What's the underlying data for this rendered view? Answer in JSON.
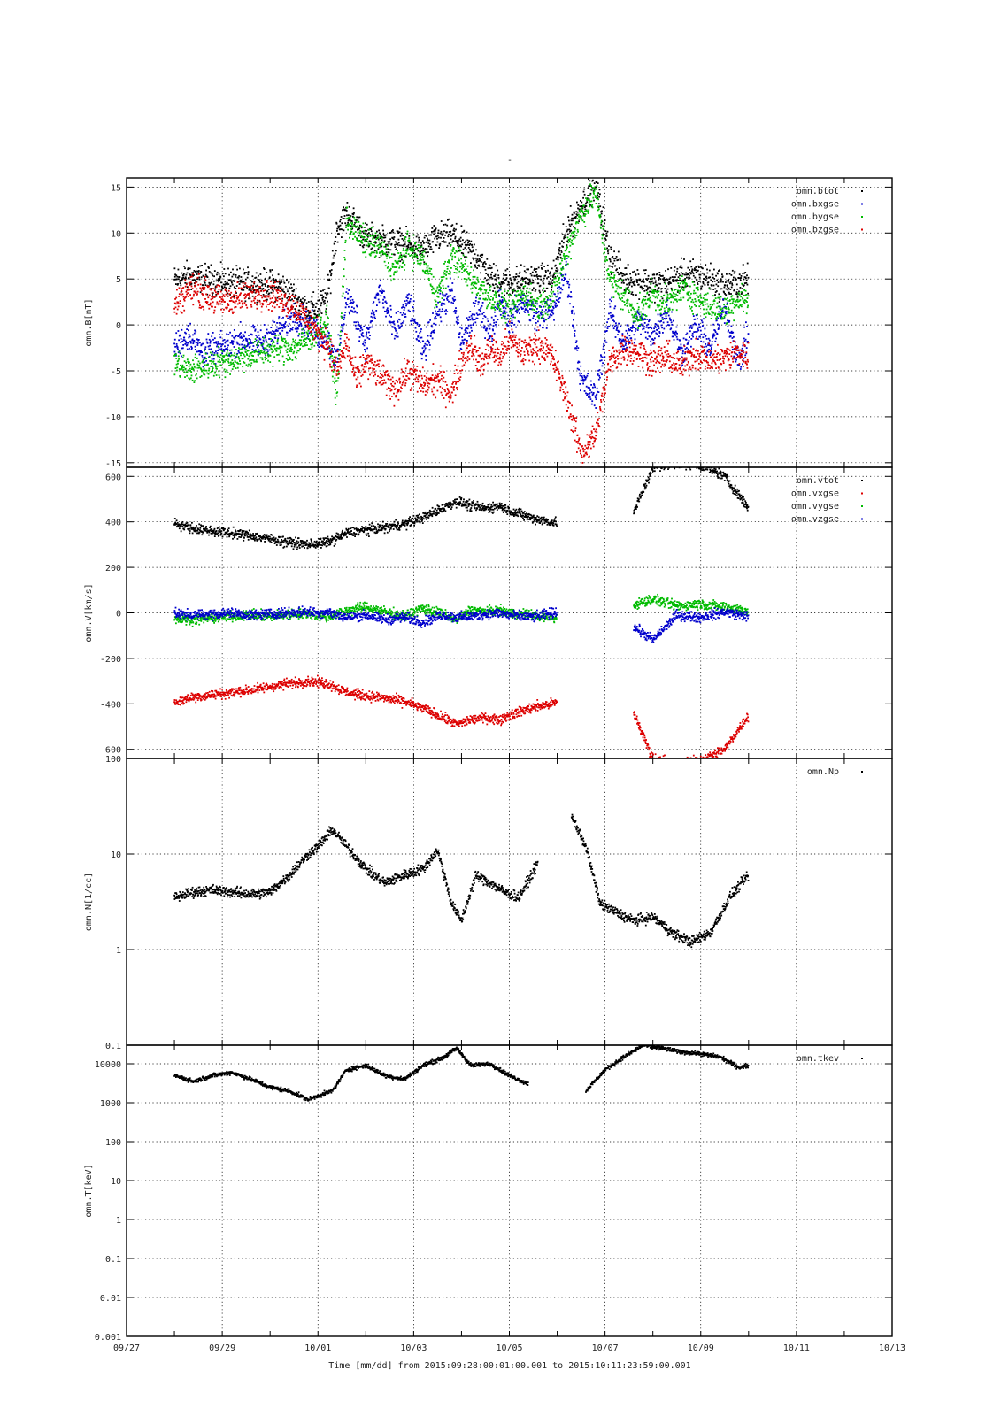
{
  "figure": {
    "title": "-",
    "time_caption": "Time [mm/dd]  from 2015:09:28:00:01:00.001  to  2015:10:11:23:59:00.001"
  },
  "chart_data": [
    {
      "type": "scatter",
      "name": "omn.B",
      "ylabel": "omn.B[nT]",
      "ylim": [
        -15.5,
        16
      ],
      "yscale": "linear",
      "yticks": [
        -15,
        -10,
        -5,
        0,
        5,
        10,
        15
      ],
      "xlim": [
        "09/27",
        "10/13"
      ],
      "xticks": [
        "09/27",
        "09/29",
        "10/01",
        "10/03",
        "10/05",
        "10/07",
        "10/09",
        "10/11",
        "10/13"
      ],
      "show_x_ticklabels": false,
      "grid": true,
      "legend_position": "top-right",
      "series": [
        {
          "name": "omn.btot",
          "color": "#000000",
          "t": [
            1.0,
            1.3,
            1.6,
            2.0,
            2.4,
            2.8,
            3.2,
            3.5,
            3.8,
            4.0,
            4.2,
            4.4,
            4.6,
            4.8,
            5.0,
            5.3,
            5.6,
            5.9,
            6.2,
            6.5,
            6.8,
            7.0,
            7.2,
            7.4,
            7.6,
            7.8,
            8.0,
            8.3,
            8.6,
            8.9,
            9.2,
            9.5,
            9.8,
            10.1,
            10.4,
            10.7,
            11.0,
            11.3,
            11.6,
            11.9,
            12.2,
            12.5,
            12.8,
            13.0
          ],
          "y": [
            4.8,
            5.3,
            5.0,
            4.7,
            4.5,
            4.4,
            4.3,
            3.0,
            1.6,
            1.8,
            3.0,
            10.5,
            12.0,
            11.0,
            9.5,
            9.2,
            9.0,
            8.6,
            8.2,
            9.5,
            9.8,
            8.8,
            8.0,
            7.0,
            5.2,
            4.8,
            4.6,
            4.9,
            5.0,
            4.9,
            10.3,
            13.0,
            15.5,
            7.5,
            5.0,
            4.8,
            4.4,
            4.6,
            5.3,
            5.5,
            5.0,
            4.2,
            4.6,
            5.0
          ]
        },
        {
          "name": "omn.bxgse",
          "color": "#0000cc",
          "t": [
            1.0,
            1.3,
            1.6,
            2.0,
            2.4,
            2.8,
            3.2,
            3.5,
            3.8,
            4.0,
            4.2,
            4.4,
            4.6,
            4.8,
            5.0,
            5.3,
            5.6,
            5.9,
            6.2,
            6.5,
            6.8,
            7.0,
            7.2,
            7.4,
            7.6,
            7.8,
            8.0,
            8.3,
            8.6,
            8.9,
            9.2,
            9.5,
            9.8,
            10.1,
            10.4,
            10.7,
            11.0,
            11.3,
            11.6,
            11.9,
            12.2,
            12.5,
            12.8,
            13.0
          ],
          "y": [
            -2.5,
            -1.0,
            -3.0,
            -2.5,
            -1.5,
            -2.0,
            -0.5,
            1.0,
            0.0,
            -1.0,
            -1.5,
            -4.0,
            3.0,
            1.0,
            -2.0,
            4.0,
            -1.0,
            2.5,
            -3.0,
            1.5,
            3.5,
            -2.0,
            0.5,
            2.0,
            -1.5,
            3.0,
            0.5,
            2.5,
            1.0,
            1.5,
            6.0,
            -6.0,
            -8.0,
            1.5,
            -2.0,
            0.5,
            -1.0,
            1.5,
            -3.0,
            0.0,
            -2.5,
            2.0,
            -4.0,
            -1.0
          ]
        },
        {
          "name": "omn.bygse",
          "color": "#00bb00",
          "t": [
            1.0,
            1.3,
            1.6,
            2.0,
            2.4,
            2.8,
            3.2,
            3.5,
            3.8,
            4.0,
            4.2,
            4.4,
            4.6,
            4.8,
            5.0,
            5.3,
            5.6,
            5.9,
            6.2,
            6.5,
            6.8,
            7.0,
            7.2,
            7.4,
            7.6,
            7.8,
            8.0,
            8.3,
            8.6,
            8.9,
            9.2,
            9.5,
            9.8,
            10.1,
            10.4,
            10.7,
            11.0,
            11.3,
            11.6,
            11.9,
            12.2,
            12.5,
            12.8,
            13.0
          ],
          "y": [
            -4.0,
            -5.0,
            -4.5,
            -4.0,
            -3.5,
            -3.0,
            -2.5,
            -2.5,
            -1.5,
            -0.5,
            0.0,
            -8.0,
            11.5,
            10.0,
            9.0,
            8.5,
            6.0,
            8.5,
            7.0,
            3.0,
            7.5,
            6.5,
            5.0,
            4.0,
            3.0,
            2.5,
            1.5,
            3.5,
            2.0,
            3.0,
            8.0,
            12.0,
            14.5,
            5.0,
            3.0,
            1.0,
            3.5,
            2.0,
            4.0,
            3.0,
            2.0,
            1.5,
            3.0,
            2.5
          ]
        },
        {
          "name": "omn.bzgse",
          "color": "#dd0000",
          "t": [
            1.0,
            1.3,
            1.6,
            2.0,
            2.4,
            2.8,
            3.2,
            3.5,
            3.8,
            4.0,
            4.2,
            4.4,
            4.6,
            4.8,
            5.0,
            5.3,
            5.6,
            5.9,
            6.2,
            6.5,
            6.8,
            7.0,
            7.2,
            7.4,
            7.6,
            7.8,
            8.0,
            8.3,
            8.6,
            8.9,
            9.2,
            9.5,
            9.8,
            10.1,
            10.4,
            10.7,
            11.0,
            11.3,
            11.6,
            11.9,
            12.2,
            12.5,
            12.8,
            13.0
          ],
          "y": [
            2.0,
            4.0,
            3.5,
            2.5,
            3.0,
            3.5,
            3.0,
            2.0,
            0.5,
            -1.0,
            -2.0,
            -5.0,
            -2.0,
            -6.0,
            -4.0,
            -5.5,
            -7.0,
            -5.0,
            -6.5,
            -6.0,
            -7.5,
            -4.0,
            -2.0,
            -4.5,
            -2.5,
            -3.5,
            -1.5,
            -3.0,
            -2.0,
            -3.5,
            -8.0,
            -14.0,
            -12.0,
            -4.0,
            -2.5,
            -3.0,
            -4.0,
            -3.5,
            -4.5,
            -3.0,
            -4.0,
            -3.5,
            -3.0,
            -3.5
          ]
        }
      ]
    },
    {
      "type": "scatter",
      "name": "omn.V",
      "ylabel": "omn.V[km/s]",
      "ylim": [
        -640,
        640
      ],
      "yscale": "linear",
      "yticks": [
        -600,
        -400,
        -200,
        0,
        200,
        400,
        600
      ],
      "xlim": [
        "09/27",
        "10/13"
      ],
      "xticks": [
        "09/27",
        "09/29",
        "10/01",
        "10/03",
        "10/05",
        "10/07",
        "10/09",
        "10/11",
        "10/13"
      ],
      "show_x_ticklabels": false,
      "grid": true,
      "legend_position": "top-right",
      "series": [
        {
          "name": "omn.vtot",
          "color": "#000000",
          "t": [
            1.0,
            1.4,
            1.8,
            2.2,
            2.6,
            3.0,
            3.4,
            3.8,
            4.0,
            4.2,
            4.6,
            5.0,
            5.4,
            5.8,
            6.2,
            6.6,
            6.9,
            7.2,
            7.5,
            7.8,
            8.0,
            8.5,
            9.0,
            9.5,
            10.0,
            10.6,
            11.0,
            11.5,
            12.0,
            12.5,
            13.0
          ],
          "y": [
            395,
            370,
            360,
            350,
            340,
            325,
            310,
            300,
            305,
            310,
            350,
            365,
            375,
            390,
            420,
            460,
            490,
            470,
            460,
            470,
            450,
            415,
            395,
            null,
            null,
            440,
            640,
            660,
            650,
            600,
            460
          ]
        },
        {
          "name": "omn.vxgse",
          "color": "#dd0000",
          "t": [
            1.0,
            1.4,
            1.8,
            2.2,
            2.6,
            3.0,
            3.4,
            3.8,
            4.0,
            4.2,
            4.6,
            5.0,
            5.4,
            5.8,
            6.2,
            6.6,
            6.9,
            7.2,
            7.5,
            7.8,
            8.0,
            8.5,
            9.0,
            9.5,
            10.0,
            10.6,
            11.0,
            11.5,
            12.0,
            12.5,
            13.0
          ],
          "y": [
            -395,
            -370,
            -360,
            -350,
            -340,
            -325,
            -310,
            -300,
            -305,
            -310,
            -350,
            -365,
            -375,
            -390,
            -420,
            -460,
            -490,
            -470,
            -460,
            -470,
            -450,
            -415,
            -395,
            null,
            null,
            -440,
            -640,
            -660,
            -650,
            -600,
            -450
          ]
        },
        {
          "name": "omn.vygse",
          "color": "#00bb00",
          "t": [
            1.0,
            1.4,
            1.8,
            2.2,
            2.6,
            3.0,
            3.4,
            3.8,
            4.0,
            4.2,
            4.6,
            5.0,
            5.4,
            5.8,
            6.2,
            6.6,
            6.9,
            7.2,
            7.5,
            7.8,
            8.0,
            8.5,
            9.0,
            9.5,
            10.0,
            10.6,
            11.0,
            11.5,
            12.0,
            12.5,
            13.0
          ],
          "y": [
            -25,
            -30,
            -20,
            -15,
            -10,
            -15,
            -5,
            -5,
            -10,
            -20,
            10,
            25,
            5,
            -15,
            20,
            -5,
            -30,
            15,
            5,
            10,
            0,
            -10,
            -25,
            null,
            null,
            35,
            60,
            30,
            40,
            25,
            10
          ]
        },
        {
          "name": "omn.vzgse",
          "color": "#0000cc",
          "t": [
            1.0,
            1.4,
            1.8,
            2.2,
            2.6,
            3.0,
            3.4,
            3.8,
            4.0,
            4.2,
            4.6,
            5.0,
            5.4,
            5.8,
            6.2,
            6.6,
            6.9,
            7.2,
            7.5,
            7.8,
            8.0,
            8.5,
            9.0,
            9.5,
            10.0,
            10.6,
            11.0,
            11.5,
            12.0,
            12.5,
            13.0
          ],
          "y": [
            -5,
            -10,
            -5,
            0,
            -10,
            -5,
            0,
            5,
            0,
            5,
            -20,
            -10,
            -30,
            -20,
            -40,
            -10,
            -20,
            -15,
            -5,
            0,
            -10,
            -20,
            5,
            null,
            null,
            -60,
            -120,
            -10,
            -20,
            5,
            -15
          ]
        }
      ]
    },
    {
      "type": "scatter",
      "name": "omn.N",
      "ylabel": "omn.N[1/cc]",
      "ylim": [
        0.1,
        100
      ],
      "yscale": "log",
      "yticks": [
        0.1,
        1,
        10,
        100
      ],
      "xlim": [
        "09/27",
        "10/13"
      ],
      "xticks": [
        "09/27",
        "09/29",
        "10/01",
        "10/03",
        "10/05",
        "10/07",
        "10/09",
        "10/11",
        "10/13"
      ],
      "show_x_ticklabels": false,
      "grid": true,
      "legend_position": "top-right",
      "series": [
        {
          "name": "omn.Np",
          "color": "#000000",
          "t": [
            1.0,
            1.4,
            1.8,
            2.2,
            2.6,
            3.0,
            3.4,
            3.8,
            4.0,
            4.3,
            4.6,
            5.0,
            5.4,
            5.8,
            6.2,
            6.5,
            6.8,
            7.0,
            7.3,
            7.6,
            7.9,
            8.2,
            8.6,
            8.9,
            9.3,
            9.6,
            9.9,
            10.2,
            10.6,
            11.0,
            11.4,
            11.8,
            12.2,
            12.6,
            13.0
          ],
          "y": [
            3.5,
            4.0,
            4.2,
            4.0,
            3.8,
            4.0,
            6.0,
            10.0,
            12.0,
            18.0,
            12.0,
            7.0,
            5.0,
            6.0,
            7.0,
            11.0,
            3.0,
            2.0,
            6.0,
            5.0,
            4.0,
            3.5,
            8.0,
            null,
            25.0,
            12.0,
            3.0,
            2.5,
            2.0,
            2.2,
            1.5,
            1.2,
            1.5,
            3.5,
            6.0
          ]
        }
      ]
    },
    {
      "type": "scatter",
      "name": "omn.T",
      "ylabel": "omn.T[keV]",
      "ylim": [
        0.001,
        30000
      ],
      "yscale": "log",
      "yticks": [
        0.001,
        0.01,
        0.1,
        1,
        10,
        100,
        1000,
        10000
      ],
      "xlim": [
        "09/27",
        "10/13"
      ],
      "xticks": [
        "09/27",
        "09/29",
        "10/01",
        "10/03",
        "10/05",
        "10/07",
        "10/09",
        "10/11",
        "10/13"
      ],
      "show_x_ticklabels": true,
      "grid": true,
      "legend_position": "top-right",
      "series": [
        {
          "name": "omn.tkev",
          "color": "#000000",
          "t": [
            1.0,
            1.4,
            1.8,
            2.2,
            2.6,
            3.0,
            3.4,
            3.8,
            4.0,
            4.3,
            4.6,
            5.0,
            5.4,
            5.8,
            6.2,
            6.6,
            6.9,
            7.2,
            7.6,
            8.0,
            8.4,
            8.8,
            9.2,
            9.6,
            10.0,
            10.4,
            10.8,
            11.2,
            11.6,
            12.0,
            12.4,
            12.8,
            13.0
          ],
          "y": [
            5000,
            3500,
            5000,
            6000,
            4000,
            2500,
            2000,
            1200,
            1500,
            2000,
            7000,
            9000,
            5000,
            4000,
            9000,
            14000,
            25000,
            9000,
            10000,
            5000,
            3000,
            null,
            null,
            2000,
            7000,
            15000,
            30000,
            25000,
            20000,
            18000,
            15000,
            8000,
            9000
          ]
        }
      ]
    }
  ]
}
